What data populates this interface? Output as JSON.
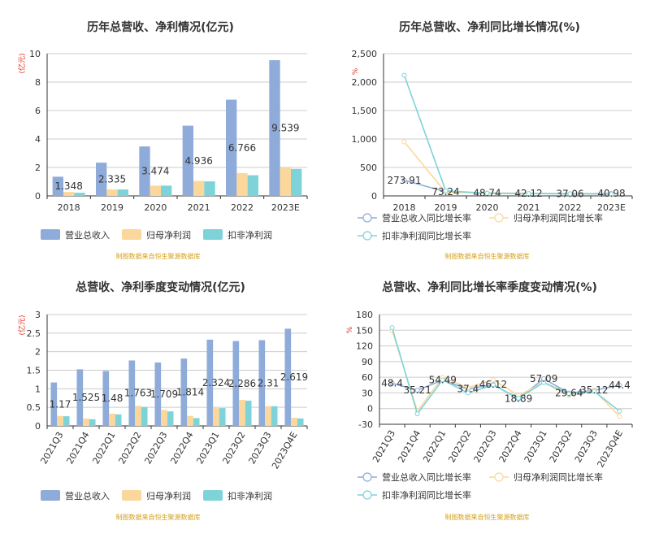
{
  "source_note": "制图数据来自恒生聚源数据库",
  "chart_data": [
    {
      "type": "bar",
      "title": "历年总营收、净利情况(亿元)",
      "unit": "(亿元)",
      "categories": [
        "2018",
        "2019",
        "2020",
        "2021",
        "2022",
        "2023E"
      ],
      "ylim": [
        0,
        10
      ],
      "yticks": [
        0,
        2,
        4,
        6,
        8,
        10
      ],
      "grid": true,
      "legend_position": "bottom",
      "series": [
        {
          "name": "营业总收入",
          "color": "#8eabd9",
          "values": [
            1.348,
            2.335,
            3.474,
            4.936,
            6.766,
            9.539
          ]
        },
        {
          "name": "归母净利润",
          "color": "#fcd79b",
          "values": [
            0.28,
            0.45,
            0.72,
            1.05,
            1.6,
            1.98
          ]
        },
        {
          "name": "扣非净利润",
          "color": "#7dd3d8",
          "values": [
            0.22,
            0.45,
            0.72,
            1.02,
            1.45,
            1.9
          ]
        }
      ],
      "data_labels": [
        "1.348",
        "2.335",
        "3.474",
        "4.936",
        "6.766",
        "9.539"
      ]
    },
    {
      "type": "line",
      "title": "历年总营收、净利同比增长情况(%)",
      "unit": "%",
      "categories": [
        "2018",
        "2019",
        "2020",
        "2021",
        "2022",
        "2023E"
      ],
      "ylim": [
        0,
        2500
      ],
      "yticks": [
        0,
        500,
        1000,
        1500,
        2000,
        2500
      ],
      "ytick_labels": [
        "0",
        "500",
        "1,000",
        "1,500",
        "2,000",
        "2,500"
      ],
      "grid": true,
      "legend_position": "bottom",
      "series": [
        {
          "name": "营业总收入同比增长率",
          "color": "#8eabd9",
          "values": [
            273.91,
            73.24,
            48.74,
            42.12,
            37.06,
            40.98
          ]
        },
        {
          "name": "归母净利润同比增长率",
          "color": "#fcd79b",
          "values": [
            950,
            60,
            52,
            45,
            40,
            25
          ]
        },
        {
          "name": "扣非净利润同比增长率",
          "color": "#7dd3d8",
          "values": [
            2120,
            90,
            45,
            40,
            38,
            32
          ]
        }
      ],
      "data_labels": [
        "273.91",
        "73.24",
        "48.74",
        "42.12",
        "37.06",
        "40.98"
      ]
    },
    {
      "type": "bar",
      "title": "总营收、净利季度变动情况(亿元)",
      "unit": "(亿元)",
      "categories": [
        "2021Q3",
        "2021Q4",
        "2022Q1",
        "2022Q2",
        "2022Q3",
        "2022Q4",
        "2023Q1",
        "2023Q2",
        "2023Q3",
        "2023Q4E"
      ],
      "ylim": [
        0,
        3
      ],
      "yticks": [
        0,
        0.5,
        1,
        1.5,
        2,
        2.5,
        3
      ],
      "ytick_labels": [
        "0",
        "0.5",
        "1",
        "1.5",
        "2",
        "2.5",
        "3"
      ],
      "grid": true,
      "legend_position": "bottom",
      "series": [
        {
          "name": "营业总收入",
          "color": "#8eabd9",
          "values": [
            1.17,
            1.525,
            1.48,
            1.763,
            1.709,
            1.814,
            2.324,
            2.286,
            2.31,
            2.619
          ]
        },
        {
          "name": "归母净利润",
          "color": "#fcd79b",
          "values": [
            0.27,
            0.2,
            0.33,
            0.54,
            0.43,
            0.27,
            0.48,
            0.7,
            0.53,
            0.22
          ]
        },
        {
          "name": "扣非净利润",
          "color": "#7dd3d8",
          "values": [
            0.26,
            0.18,
            0.31,
            0.51,
            0.39,
            0.21,
            0.48,
            0.68,
            0.53,
            0.2
          ]
        }
      ],
      "data_labels": [
        "1.17",
        "1.525",
        "1.48",
        "1.763",
        "1.709",
        "1.814",
        "2.324",
        "2.286",
        "2.31",
        "2.619"
      ]
    },
    {
      "type": "line",
      "title": "总营收、净利同比增长率季度变动情况(%)",
      "unit": "%",
      "categories": [
        "2021Q3",
        "2021Q4",
        "2022Q1",
        "2022Q2",
        "2022Q3",
        "2022Q4",
        "2023Q1",
        "2023Q2",
        "2023Q3",
        "2023Q4E"
      ],
      "ylim": [
        -30,
        180
      ],
      "yticks": [
        -30,
        0,
        30,
        60,
        90,
        120,
        150,
        180
      ],
      "ytick_labels": [
        "-30",
        "0",
        "30",
        "60",
        "90",
        "120",
        "150",
        "180"
      ],
      "grid": true,
      "legend_position": "bottom",
      "series": [
        {
          "name": "营业总收入同比增长率",
          "color": "#8eabd9",
          "values": [
            48.4,
            35.21,
            54.49,
            37.4,
            46.12,
            18.89,
            57.09,
            29.64,
            35.12,
            44.4
          ]
        },
        {
          "name": "归母净利润同比增长率",
          "color": "#fcd79b",
          "values": [
            150,
            -5,
            60,
            40,
            55,
            25,
            50,
            25,
            35,
            -15
          ]
        },
        {
          "name": "扣非净利润同比增长率",
          "color": "#7dd3d8",
          "values": [
            155,
            -10,
            55,
            30,
            45,
            20,
            50,
            28,
            33,
            -5
          ]
        }
      ],
      "data_labels": [
        "48.4",
        "35.21",
        "54.49",
        "37.4",
        "46.12",
        "18.89",
        "57.09",
        "29.64",
        "35.12",
        "44.4"
      ]
    }
  ]
}
